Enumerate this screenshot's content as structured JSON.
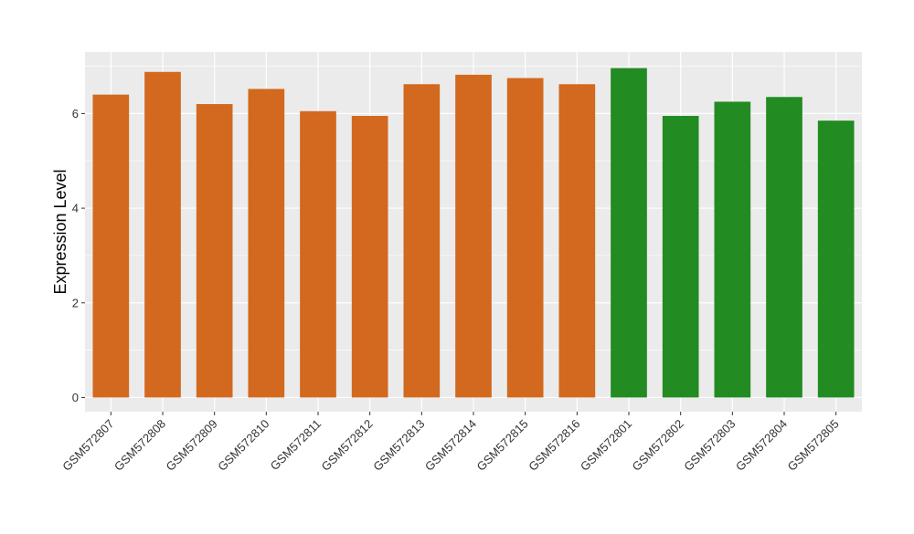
{
  "chart_data": {
    "type": "bar",
    "title": "",
    "xlabel": "",
    "ylabel": "Expression Level",
    "ylim": [
      -0.3,
      7.3
    ],
    "yticks": [
      0,
      2,
      4,
      6
    ],
    "grid": true,
    "legend": "none",
    "background_color": "#EBEBEB",
    "grid_color": "#FFFFFF",
    "categories": [
      "GSM572807",
      "GSM572808",
      "GSM572809",
      "GSM572810",
      "GSM572811",
      "GSM572812",
      "GSM572813",
      "GSM572814",
      "GSM572815",
      "GSM572816",
      "GSM572801",
      "GSM572802",
      "GSM572803",
      "GSM572804",
      "GSM572805"
    ],
    "values": [
      6.4,
      6.88,
      6.2,
      6.52,
      6.05,
      5.95,
      6.62,
      6.82,
      6.75,
      6.62,
      6.96,
      5.95,
      6.25,
      6.35,
      5.85
    ],
    "bar_colors": [
      "#D2691E",
      "#D2691E",
      "#D2691E",
      "#D2691E",
      "#D2691E",
      "#D2691E",
      "#D2691E",
      "#D2691E",
      "#D2691E",
      "#D2691E",
      "#228B22",
      "#228B22",
      "#228B22",
      "#228B22",
      "#228B22"
    ]
  }
}
